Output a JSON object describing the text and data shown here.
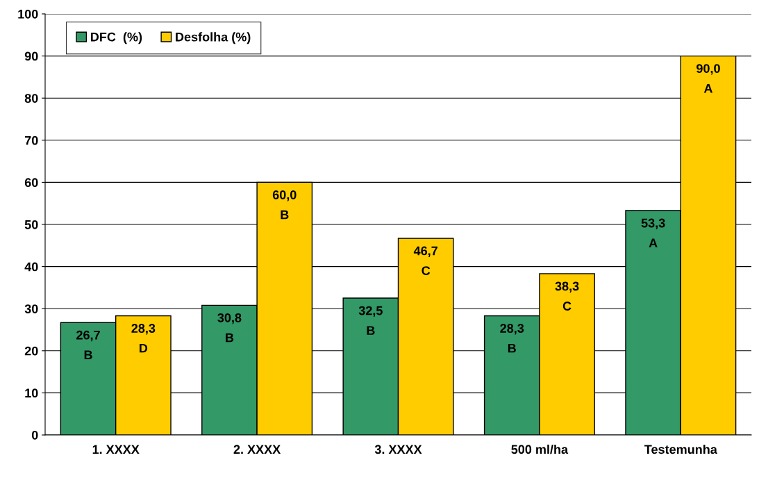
{
  "chart_data": {
    "type": "bar",
    "categories": [
      "1. XXXX",
      "2. XXXX",
      "3. XXXX",
      "500 ml/ha",
      "Testemunha"
    ],
    "series": [
      {
        "name": "DFC  (%)",
        "color": "#339966",
        "values": [
          26.7,
          30.8,
          32.5,
          28.3,
          53.3
        ],
        "value_labels": [
          "26,7\nB",
          "30,8\nB",
          "32,5\nB",
          "28,3\nB",
          "53,3\nA"
        ]
      },
      {
        "name": "Desfolha (%)",
        "color": "#ffcc00",
        "values": [
          28.3,
          60.0,
          46.7,
          38.3,
          90.0
        ],
        "value_labels": [
          "28,3\nD",
          "60,0\nB",
          "46,7\nC",
          "38,3\nC",
          "90,0\nA"
        ]
      }
    ],
    "ylim": [
      0,
      100
    ],
    "yticks": [
      0,
      10,
      20,
      30,
      40,
      50,
      60,
      70,
      80,
      90,
      100
    ],
    "grid": "y",
    "legend": "top left"
  }
}
